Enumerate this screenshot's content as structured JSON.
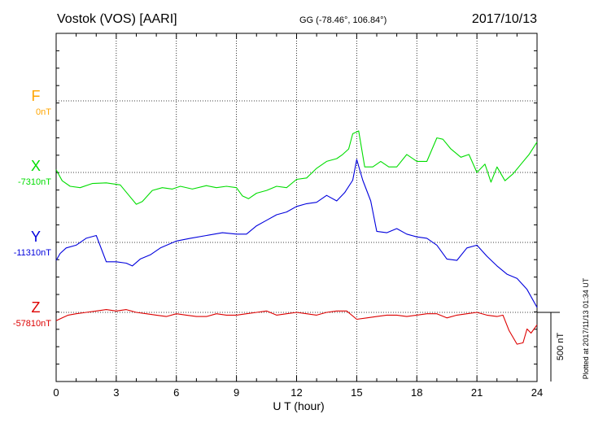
{
  "chart_data": {
    "type": "line",
    "title": "Vostok (VOS)  [AARI]",
    "subtitle": "GG (-78.46°, 106.84°)",
    "date": "2017/10/13",
    "xlabel": "U T (hour)",
    "x_ticks": [
      "0",
      "3",
      "6",
      "9",
      "12",
      "15",
      "18",
      "21",
      "24"
    ],
    "xlim": [
      0,
      24
    ],
    "scale_label": "500 nT",
    "scale_nT": 500,
    "footer": "Plotted at 2017/11/13 01:34 UT",
    "grid": true,
    "series": [
      {
        "name": "F",
        "baseline_label": "0nT",
        "baseline": 0,
        "color": "#ffa500",
        "x": [],
        "y": []
      },
      {
        "name": "X",
        "baseline_label": "-7310nT",
        "baseline": -7310,
        "color": "#00dd00",
        "x": [
          0,
          0.3,
          0.7,
          1.2,
          1.8,
          2.5,
          3.2,
          3.6,
          4.0,
          4.3,
          4.8,
          5.3,
          5.8,
          6.2,
          6.8,
          7.5,
          8.0,
          8.5,
          9.0,
          9.3,
          9.6,
          10.0,
          10.5,
          11.0,
          11.5,
          12.0,
          12.5,
          13.0,
          13.5,
          14.0,
          14.3,
          14.6,
          14.8,
          15.1,
          15.4,
          15.8,
          16.2,
          16.6,
          17.0,
          17.5,
          18.0,
          18.5,
          19.0,
          19.3,
          19.7,
          20.2,
          20.6,
          21.0,
          21.4,
          21.7,
          22.0,
          22.4,
          22.8,
          23.2,
          23.6,
          24.0
        ],
        "y": [
          20,
          -60,
          -100,
          -110,
          -80,
          -75,
          -90,
          -160,
          -230,
          -210,
          -130,
          -110,
          -120,
          -100,
          -120,
          -95,
          -110,
          -100,
          -110,
          -170,
          -190,
          -150,
          -130,
          -100,
          -110,
          -50,
          -40,
          30,
          80,
          100,
          130,
          170,
          280,
          300,
          40,
          40,
          80,
          40,
          40,
          130,
          80,
          80,
          250,
          240,
          170,
          110,
          130,
          0,
          60,
          -70,
          40,
          -60,
          -10,
          60,
          130,
          220
        ]
      },
      {
        "name": "Y",
        "baseline_label": "-11310nT",
        "baseline": -11310,
        "color": "#0000dd",
        "x": [
          0,
          0.2,
          0.5,
          1.0,
          1.5,
          2.0,
          2.5,
          3.0,
          3.5,
          3.8,
          4.2,
          4.7,
          5.2,
          6.0,
          6.7,
          7.5,
          8.3,
          9.0,
          9.5,
          10.0,
          10.5,
          11.0,
          11.5,
          12.0,
          12.5,
          13.0,
          13.5,
          14.0,
          14.4,
          14.8,
          15.0,
          15.3,
          15.7,
          16.0,
          16.5,
          17.0,
          17.5,
          18.0,
          18.5,
          19.0,
          19.5,
          20.0,
          20.5,
          21.0,
          21.5,
          22.0,
          22.5,
          23.0,
          23.5,
          24.0
        ],
        "y": [
          -130,
          -80,
          -40,
          -20,
          30,
          50,
          -140,
          -140,
          -150,
          -170,
          -120,
          -90,
          -40,
          10,
          30,
          50,
          70,
          60,
          60,
          120,
          160,
          200,
          220,
          260,
          280,
          290,
          340,
          300,
          360,
          450,
          600,
          450,
          300,
          80,
          70,
          100,
          60,
          40,
          30,
          -20,
          -120,
          -130,
          -40,
          -20,
          -100,
          -170,
          -230,
          -260,
          -340,
          -470
        ]
      },
      {
        "name": "Z",
        "baseline_label": "-57810nT",
        "baseline": -57810,
        "color": "#dd0000",
        "x": [
          0,
          0.3,
          0.6,
          1.0,
          1.5,
          2.0,
          2.5,
          3.0,
          3.5,
          4.0,
          4.5,
          5.0,
          5.5,
          6.0,
          6.5,
          7.0,
          7.5,
          8.0,
          8.5,
          9.0,
          9.5,
          10.0,
          10.5,
          11.0,
          11.5,
          12.0,
          12.5,
          13.0,
          13.5,
          14.0,
          14.5,
          15.0,
          15.5,
          16.0,
          16.5,
          17.0,
          17.5,
          18.0,
          18.5,
          19.0,
          19.5,
          20.0,
          20.5,
          21.0,
          21.5,
          22.0,
          22.3,
          22.6,
          23.0,
          23.3,
          23.5,
          23.7,
          24.0
        ],
        "y": [
          -60,
          -40,
          -20,
          -10,
          0,
          10,
          20,
          10,
          20,
          0,
          -10,
          -20,
          -30,
          -10,
          -20,
          -30,
          -30,
          -10,
          -20,
          -20,
          -10,
          0,
          10,
          -20,
          -10,
          0,
          -10,
          -20,
          0,
          10,
          10,
          -50,
          -40,
          -30,
          -20,
          -20,
          -30,
          -20,
          -10,
          -10,
          -40,
          -20,
          -10,
          0,
          -20,
          -30,
          -20,
          -130,
          -230,
          -220,
          -120,
          -150,
          -90
        ]
      }
    ]
  }
}
